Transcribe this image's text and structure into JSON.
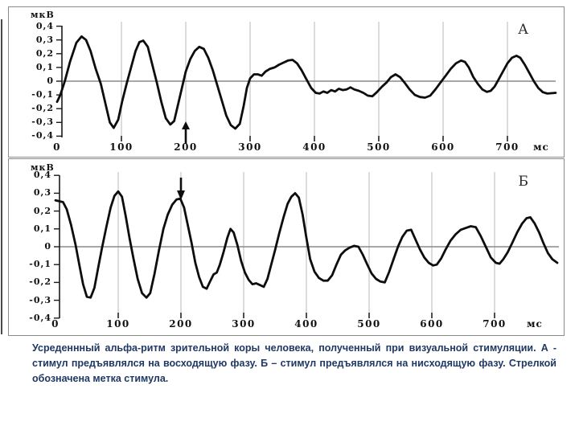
{
  "figure": {
    "caption_lines": [
      "Усреденнный альфа-ритм зрительной коры человека, полученный при визуальной стимуляции. А -",
      "стимул предъявлялся на восходящую фазу. Б – стимул предъявлялся на нисходящую фазу. Стрелкой",
      "обозначена метка стимула."
    ],
    "caption_color": "#1f3864",
    "line_color": "#0d0d0d",
    "grid_color": "#b8b8b8",
    "zero_line_color": "#8a8a8a"
  },
  "chart_data": [
    {
      "type": "line",
      "label": "А",
      "unit_y": "мкВ",
      "unit_x": "мс",
      "ylim": [
        -0.4,
        0.4
      ],
      "xlim": [
        0,
        775
      ],
      "grid": "vertical",
      "legend": "none",
      "y_ticks": [
        {
          "label": "0,4",
          "value": 0.4
        },
        {
          "label": "0,3",
          "value": 0.3
        },
        {
          "label": "0,2",
          "value": 0.2
        },
        {
          "label": "0,1",
          "value": 0.1
        },
        {
          "label": "0",
          "value": 0.0
        },
        {
          "label": "-0,1",
          "value": -0.1
        },
        {
          "label": "-0,2",
          "value": -0.2
        },
        {
          "label": "-0,3",
          "value": -0.3
        },
        {
          "label": "-0,4",
          "value": -0.4
        }
      ],
      "x_ticks": [
        {
          "label": "0",
          "value": 0
        },
        {
          "label": "100",
          "value": 100
        },
        {
          "label": "200",
          "value": 200
        },
        {
          "label": "300",
          "value": 300
        },
        {
          "label": "400",
          "value": 400
        },
        {
          "label": "500",
          "value": 500
        },
        {
          "label": "600",
          "value": 600
        },
        {
          "label": "700",
          "value": 700
        }
      ],
      "stimulus_marker": {
        "ms": 200,
        "direction": "up"
      },
      "points_ms_uv": [
        [
          0,
          -0.15
        ],
        [
          5,
          -0.1
        ],
        [
          12,
          0.0
        ],
        [
          20,
          0.14
        ],
        [
          30,
          0.28
        ],
        [
          38,
          0.325
        ],
        [
          45,
          0.3
        ],
        [
          52,
          0.22
        ],
        [
          60,
          0.09
        ],
        [
          68,
          -0.02
        ],
        [
          75,
          -0.16
        ],
        [
          82,
          -0.3
        ],
        [
          88,
          -0.34
        ],
        [
          95,
          -0.28
        ],
        [
          101,
          -0.15
        ],
        [
          108,
          -0.02
        ],
        [
          115,
          0.1
        ],
        [
          122,
          0.22
        ],
        [
          128,
          0.285
        ],
        [
          134,
          0.295
        ],
        [
          141,
          0.25
        ],
        [
          148,
          0.12
        ],
        [
          155,
          -0.01
        ],
        [
          162,
          -0.15
        ],
        [
          169,
          -0.27
        ],
        [
          176,
          -0.315
        ],
        [
          182,
          -0.29
        ],
        [
          188,
          -0.17
        ],
        [
          194,
          -0.05
        ],
        [
          200,
          0.07
        ],
        [
          207,
          0.16
        ],
        [
          214,
          0.22
        ],
        [
          221,
          0.25
        ],
        [
          228,
          0.235
        ],
        [
          235,
          0.17
        ],
        [
          242,
          0.08
        ],
        [
          249,
          -0.03
        ],
        [
          256,
          -0.14
        ],
        [
          263,
          -0.25
        ],
        [
          270,
          -0.32
        ],
        [
          277,
          -0.345
        ],
        [
          284,
          -0.31
        ],
        [
          290,
          -0.18
        ],
        [
          295,
          -0.05
        ],
        [
          300,
          0.02
        ],
        [
          306,
          0.05
        ],
        [
          312,
          0.05
        ],
        [
          318,
          0.04
        ],
        [
          324,
          0.07
        ],
        [
          331,
          0.09
        ],
        [
          338,
          0.1
        ],
        [
          345,
          0.12
        ],
        [
          352,
          0.135
        ],
        [
          359,
          0.15
        ],
        [
          366,
          0.155
        ],
        [
          373,
          0.13
        ],
        [
          380,
          0.08
        ],
        [
          388,
          0.01
        ],
        [
          395,
          -0.05
        ],
        [
          402,
          -0.085
        ],
        [
          408,
          -0.09
        ],
        [
          414,
          -0.075
        ],
        [
          420,
          -0.085
        ],
        [
          426,
          -0.065
        ],
        [
          432,
          -0.075
        ],
        [
          438,
          -0.055
        ],
        [
          444,
          -0.065
        ],
        [
          450,
          -0.06
        ],
        [
          456,
          -0.045
        ],
        [
          462,
          -0.06
        ],
        [
          469,
          -0.07
        ],
        [
          476,
          -0.085
        ],
        [
          483,
          -0.105
        ],
        [
          490,
          -0.11
        ],
        [
          497,
          -0.08
        ],
        [
          505,
          -0.04
        ],
        [
          512,
          -0.01
        ],
        [
          519,
          0.03
        ],
        [
          526,
          0.05
        ],
        [
          533,
          0.03
        ],
        [
          540,
          -0.01
        ],
        [
          548,
          -0.06
        ],
        [
          556,
          -0.1
        ],
        [
          564,
          -0.115
        ],
        [
          572,
          -0.12
        ],
        [
          580,
          -0.105
        ],
        [
          588,
          -0.06
        ],
        [
          596,
          -0.01
        ],
        [
          604,
          0.04
        ],
        [
          612,
          0.09
        ],
        [
          620,
          0.13
        ],
        [
          628,
          0.15
        ],
        [
          634,
          0.14
        ],
        [
          640,
          0.1
        ],
        [
          647,
          0.03
        ],
        [
          654,
          -0.02
        ],
        [
          661,
          -0.06
        ],
        [
          668,
          -0.078
        ],
        [
          674,
          -0.07
        ],
        [
          680,
          -0.04
        ],
        [
          686,
          0.01
        ],
        [
          693,
          0.07
        ],
        [
          700,
          0.13
        ],
        [
          707,
          0.17
        ],
        [
          714,
          0.185
        ],
        [
          720,
          0.17
        ],
        [
          727,
          0.12
        ],
        [
          734,
          0.06
        ],
        [
          741,
          0.0
        ],
        [
          748,
          -0.05
        ],
        [
          755,
          -0.08
        ],
        [
          762,
          -0.09
        ],
        [
          768,
          -0.088
        ],
        [
          775,
          -0.085
        ]
      ]
    },
    {
      "type": "line",
      "label": "Б",
      "unit_y": "мкВ",
      "unit_x": "мс",
      "ylim": [
        -0.4,
        0.4
      ],
      "xlim": [
        0,
        800
      ],
      "grid": "vertical",
      "legend": "none",
      "y_ticks": [
        {
          "label": "0,4",
          "value": 0.4
        },
        {
          "label": "0,3",
          "value": 0.3
        },
        {
          "label": "0,2",
          "value": 0.2
        },
        {
          "label": "0,1",
          "value": 0.1
        },
        {
          "label": "0",
          "value": 0.0
        },
        {
          "label": "-0,1",
          "value": -0.1
        },
        {
          "label": "-0,2",
          "value": -0.2
        },
        {
          "label": "-0,3",
          "value": -0.3
        },
        {
          "label": "-0,4",
          "value": -0.4
        }
      ],
      "x_ticks": [
        {
          "label": "0",
          "value": 0
        },
        {
          "label": "100",
          "value": 100
        },
        {
          "label": "200",
          "value": 200
        },
        {
          "label": "300",
          "value": 300
        },
        {
          "label": "400",
          "value": 400
        },
        {
          "label": "500",
          "value": 500
        },
        {
          "label": "600",
          "value": 600
        },
        {
          "label": "700",
          "value": 700
        }
      ],
      "stimulus_marker": {
        "ms": 200,
        "direction": "down"
      },
      "points_ms_uv": [
        [
          0,
          0.26
        ],
        [
          6,
          0.255
        ],
        [
          12,
          0.25
        ],
        [
          18,
          0.21
        ],
        [
          25,
          0.12
        ],
        [
          32,
          0.01
        ],
        [
          38,
          -0.1
        ],
        [
          44,
          -0.21
        ],
        [
          50,
          -0.28
        ],
        [
          56,
          -0.285
        ],
        [
          62,
          -0.23
        ],
        [
          68,
          -0.12
        ],
        [
          74,
          -0.01
        ],
        [
          81,
          0.11
        ],
        [
          88,
          0.22
        ],
        [
          94,
          0.285
        ],
        [
          100,
          0.31
        ],
        [
          106,
          0.28
        ],
        [
          112,
          0.17
        ],
        [
          118,
          0.05
        ],
        [
          124,
          -0.06
        ],
        [
          131,
          -0.18
        ],
        [
          138,
          -0.26
        ],
        [
          145,
          -0.285
        ],
        [
          151,
          -0.26
        ],
        [
          158,
          -0.15
        ],
        [
          165,
          -0.02
        ],
        [
          172,
          0.1
        ],
        [
          179,
          0.18
        ],
        [
          186,
          0.235
        ],
        [
          193,
          0.265
        ],
        [
          199,
          0.27
        ],
        [
          205,
          0.22
        ],
        [
          211,
          0.12
        ],
        [
          217,
          0.02
        ],
        [
          223,
          -0.09
        ],
        [
          229,
          -0.17
        ],
        [
          235,
          -0.225
        ],
        [
          241,
          -0.235
        ],
        [
          247,
          -0.19
        ],
        [
          252,
          -0.155
        ],
        [
          257,
          -0.145
        ],
        [
          262,
          -0.1
        ],
        [
          268,
          -0.03
        ],
        [
          274,
          0.05
        ],
        [
          279,
          0.1
        ],
        [
          284,
          0.08
        ],
        [
          290,
          0.01
        ],
        [
          296,
          -0.08
        ],
        [
          302,
          -0.145
        ],
        [
          308,
          -0.185
        ],
        [
          314,
          -0.21
        ],
        [
          320,
          -0.205
        ],
        [
          326,
          -0.215
        ],
        [
          332,
          -0.225
        ],
        [
          338,
          -0.18
        ],
        [
          344,
          -0.1
        ],
        [
          350,
          -0.02
        ],
        [
          357,
          0.08
        ],
        [
          364,
          0.17
        ],
        [
          370,
          0.24
        ],
        [
          376,
          0.28
        ],
        [
          382,
          0.3
        ],
        [
          388,
          0.275
        ],
        [
          394,
          0.18
        ],
        [
          400,
          0.05
        ],
        [
          406,
          -0.07
        ],
        [
          413,
          -0.14
        ],
        [
          420,
          -0.175
        ],
        [
          427,
          -0.19
        ],
        [
          434,
          -0.19
        ],
        [
          441,
          -0.16
        ],
        [
          448,
          -0.1
        ],
        [
          455,
          -0.045
        ],
        [
          462,
          -0.02
        ],
        [
          469,
          -0.005
        ],
        [
          476,
          0.005
        ],
        [
          483,
          0.0
        ],
        [
          490,
          -0.045
        ],
        [
          497,
          -0.1
        ],
        [
          504,
          -0.15
        ],
        [
          511,
          -0.18
        ],
        [
          518,
          -0.195
        ],
        [
          525,
          -0.2
        ],
        [
          532,
          -0.14
        ],
        [
          539,
          -0.07
        ],
        [
          546,
          0.0
        ],
        [
          553,
          0.055
        ],
        [
          560,
          0.09
        ],
        [
          567,
          0.095
        ],
        [
          574,
          0.04
        ],
        [
          581,
          -0.015
        ],
        [
          588,
          -0.06
        ],
        [
          595,
          -0.09
        ],
        [
          602,
          -0.105
        ],
        [
          608,
          -0.1
        ],
        [
          615,
          -0.065
        ],
        [
          622,
          -0.015
        ],
        [
          630,
          0.035
        ],
        [
          638,
          0.07
        ],
        [
          646,
          0.095
        ],
        [
          654,
          0.105
        ],
        [
          662,
          0.115
        ],
        [
          670,
          0.11
        ],
        [
          678,
          0.06
        ],
        [
          686,
          0.0
        ],
        [
          694,
          -0.06
        ],
        [
          702,
          -0.09
        ],
        [
          708,
          -0.095
        ],
        [
          714,
          -0.07
        ],
        [
          721,
          -0.03
        ],
        [
          728,
          0.02
        ],
        [
          736,
          0.08
        ],
        [
          744,
          0.13
        ],
        [
          751,
          0.16
        ],
        [
          757,
          0.165
        ],
        [
          764,
          0.13
        ],
        [
          771,
          0.08
        ],
        [
          778,
          0.02
        ],
        [
          785,
          -0.035
        ],
        [
          792,
          -0.07
        ],
        [
          800,
          -0.09
        ]
      ]
    }
  ]
}
